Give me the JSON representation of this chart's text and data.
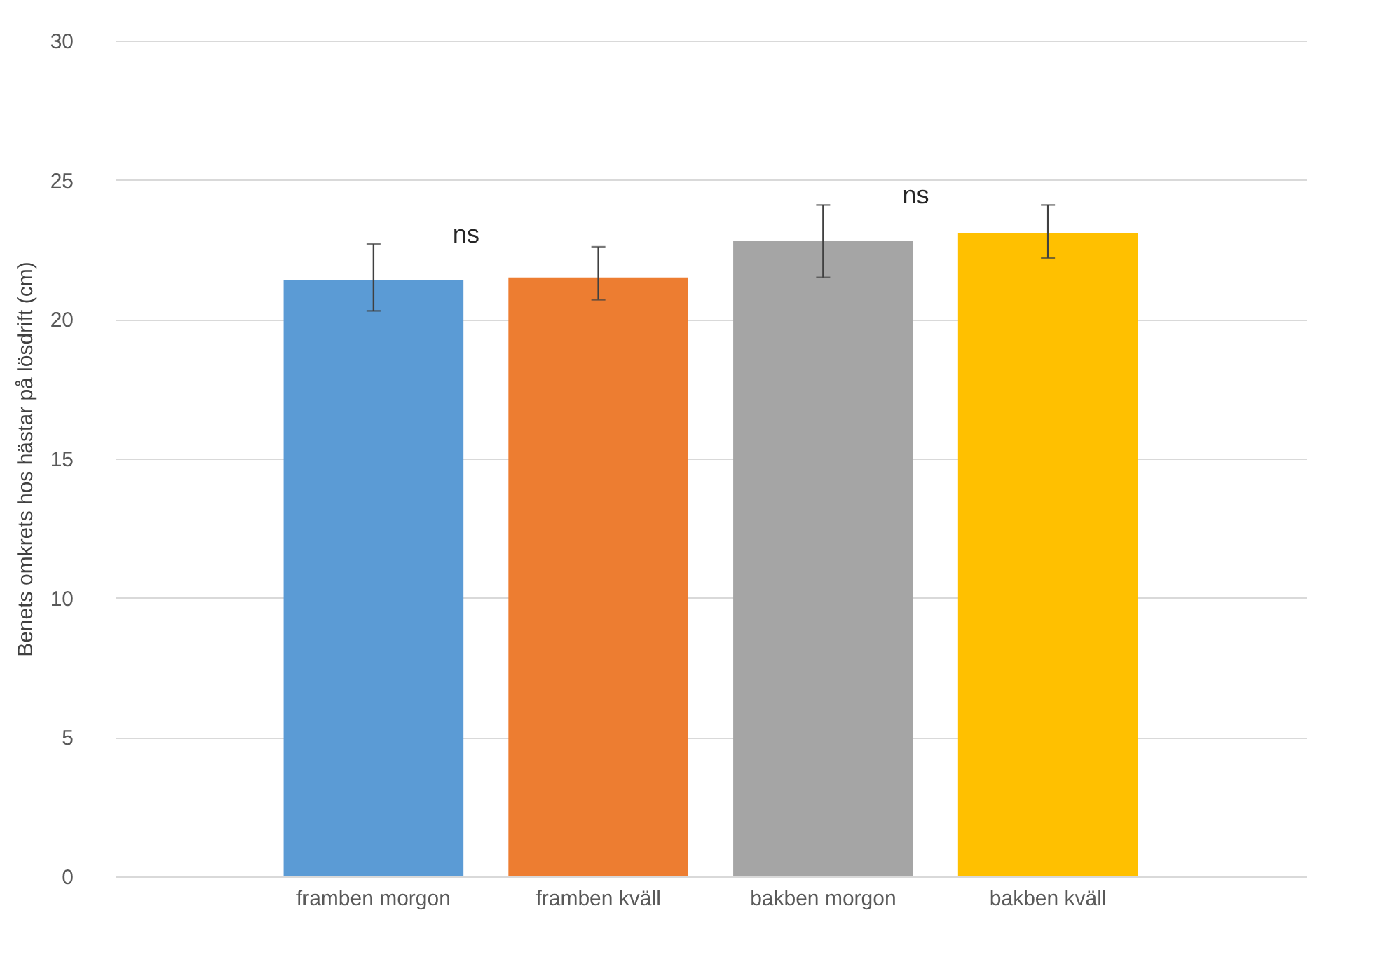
{
  "chart_data": {
    "type": "bar",
    "ylabel": "Benets omkrets hos hästar på lösdrift (cm)",
    "categories": [
      "framben morgon",
      "framben kväll",
      "bakben morgon",
      "bakben kväll"
    ],
    "values": [
      21.4,
      21.5,
      22.8,
      23.1
    ],
    "colors": [
      "#5b9bd5",
      "#ed7d31",
      "#a5a5a5",
      "#ffc000"
    ],
    "errors": [
      [
        20.3,
        22.7
      ],
      [
        20.7,
        22.6
      ],
      [
        21.5,
        24.1
      ],
      [
        22.2,
        24.1
      ]
    ],
    "ylim": [
      0,
      30
    ],
    "yticks": [
      0,
      5,
      10,
      15,
      20,
      25,
      30
    ],
    "grid": "y",
    "annotations": [
      "ns",
      "ns"
    ]
  }
}
